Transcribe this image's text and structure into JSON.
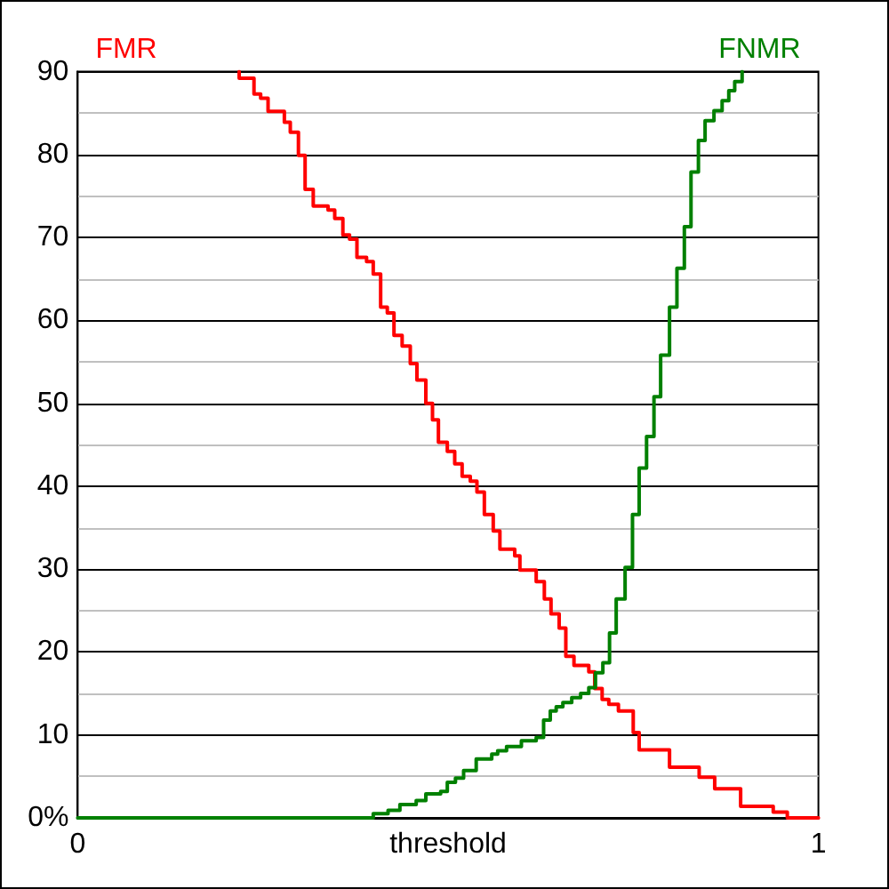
{
  "chart_data": {
    "type": "step",
    "xlabel": "threshold",
    "xlim": [
      0,
      1
    ],
    "xticks": [
      0,
      1
    ],
    "ylim": [
      0,
      90
    ],
    "yticks": [
      {
        "value": 0,
        "label": "0%"
      },
      {
        "value": 5,
        "label": null
      },
      10,
      {
        "value": 15,
        "label": null
      },
      20,
      {
        "value": 25,
        "label": null
      },
      30,
      {
        "value": 35,
        "label": null
      },
      40,
      {
        "value": 45,
        "label": null
      },
      50,
      {
        "value": 55,
        "label": null
      },
      60,
      {
        "value": 65,
        "label": null
      },
      70,
      {
        "value": 75,
        "label": null
      },
      80,
      {
        "value": 85,
        "label": null
      },
      90
    ],
    "grid": "y",
    "series": [
      {
        "name": "FMR",
        "color": "#ff0000",
        "x": [
          0.218,
          0.218,
          0.238,
          0.247,
          0.257,
          0.279,
          0.287,
          0.298,
          0.307,
          0.318,
          0.338,
          0.347,
          0.358,
          0.367,
          0.377,
          0.39,
          0.399,
          0.409,
          0.418,
          0.427,
          0.438,
          0.449,
          0.458,
          0.47,
          0.479,
          0.487,
          0.499,
          0.509,
          0.519,
          0.53,
          0.539,
          0.549,
          0.561,
          0.57,
          0.59,
          0.597,
          0.619,
          0.63,
          0.639,
          0.65,
          0.659,
          0.67,
          0.69,
          0.698,
          0.708,
          0.717,
          0.73,
          0.75,
          0.758,
          0.799,
          0.839,
          0.86,
          0.895,
          0.939,
          0.958,
          1
        ],
        "values": [
          90,
          89.2,
          87.3,
          86.8,
          85.2,
          83.9,
          82.7,
          79.9,
          75.8,
          73.8,
          73.3,
          72.3,
          70.3,
          69.8,
          67.6,
          67.1,
          65.6,
          61.6,
          60.9,
          58.2,
          56.9,
          54.8,
          52.8,
          50.0,
          48.0,
          45.3,
          44.2,
          42.7,
          41.2,
          40.6,
          39.3,
          36.6,
          34.6,
          32.4,
          31.6,
          29.9,
          28.5,
          26.4,
          24.6,
          22.9,
          19.5,
          18.4,
          17.6,
          15.6,
          14.3,
          13.7,
          12.9,
          10.3,
          8.2,
          6.1,
          4.9,
          3.5,
          1.4,
          0.7,
          0,
          0
        ]
      },
      {
        "name": "FNMR",
        "color": "#008000",
        "x": [
          0,
          0.399,
          0.419,
          0.435,
          0.457,
          0.47,
          0.49,
          0.499,
          0.51,
          0.521,
          0.538,
          0.559,
          0.567,
          0.579,
          0.599,
          0.619,
          0.629,
          0.638,
          0.646,
          0.655,
          0.667,
          0.679,
          0.69,
          0.699,
          0.709,
          0.718,
          0.727,
          0.739,
          0.749,
          0.758,
          0.768,
          0.778,
          0.787,
          0.799,
          0.809,
          0.819,
          0.828,
          0.838,
          0.847,
          0.859,
          0.87,
          0.879,
          0.887,
          0.897
        ],
        "values": [
          0,
          0.5,
          0.9,
          1.6,
          2.1,
          2.9,
          3.2,
          4.3,
          4.8,
          5.7,
          7.1,
          7.7,
          8.1,
          8.6,
          9.3,
          9.7,
          11.8,
          12.9,
          13.4,
          13.9,
          14.5,
          15.0,
          15.7,
          17.5,
          18.7,
          22.3,
          26.4,
          30.2,
          36.6,
          42.2,
          46.0,
          50.8,
          55.8,
          61.6,
          66.3,
          71.3,
          77.9,
          81.7,
          84.1,
          85.3,
          86.5,
          87.7,
          88.8,
          90
        ]
      }
    ]
  }
}
